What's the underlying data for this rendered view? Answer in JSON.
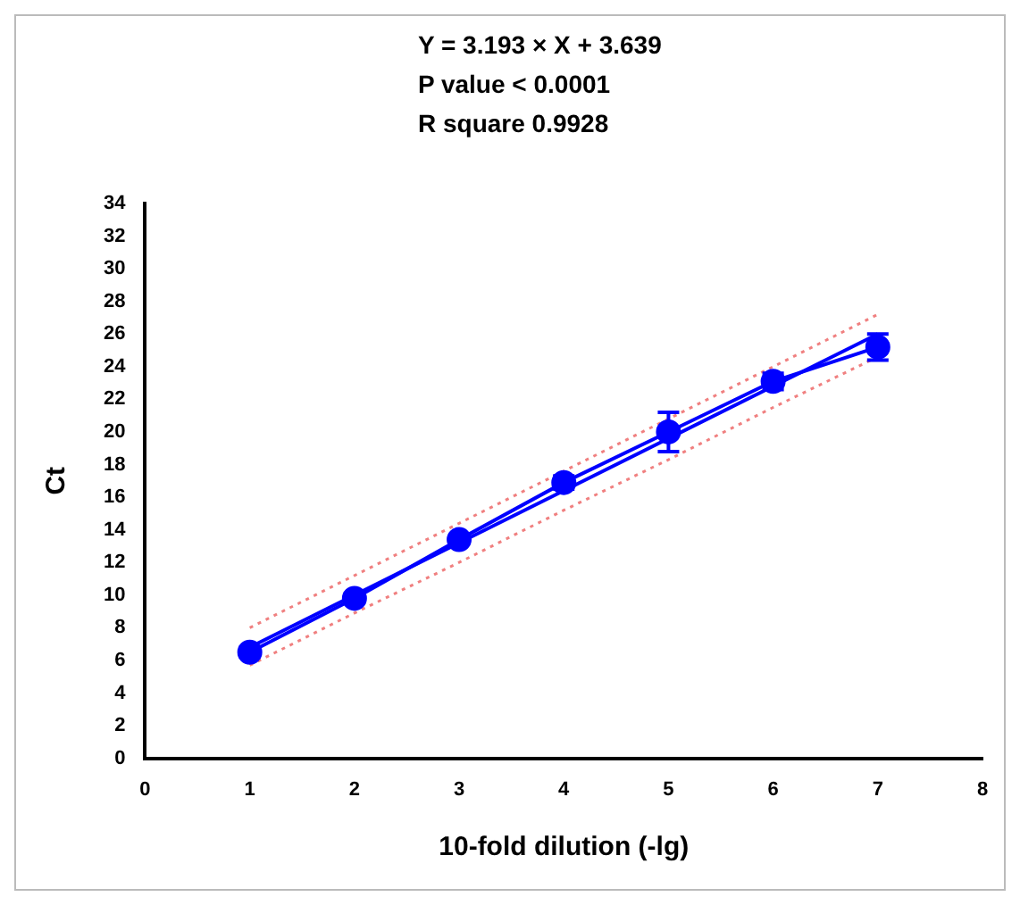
{
  "chart_data": {
    "type": "scatter",
    "xlabel": "10-fold dilution (-lg)",
    "ylabel": "Ct",
    "annotations": [
      "Y = 3.193 × X + 3.639",
      "P value < 0.0001",
      "R square 0.9928"
    ],
    "x": [
      1,
      2,
      3,
      4,
      5,
      6,
      7
    ],
    "series": [
      {
        "type": "line",
        "color": "#0000ff",
        "values": [
          6.5,
          9.8,
          13.4,
          16.9,
          20.0,
          23.1,
          25.2
        ],
        "errors": [
          0.3,
          0.3,
          0.3,
          0.4,
          1.2,
          0.5,
          0.8
        ],
        "marker": "circle",
        "line_style": "solid"
      },
      {
        "type": "line",
        "color": "#0000ff",
        "values": [
          6.8,
          10.0,
          13.2,
          16.4,
          19.6,
          22.8,
          26.0
        ],
        "marker": "none",
        "line_style": "solid"
      },
      {
        "type": "line",
        "color": "#f08080",
        "values": [
          8.0,
          11.2,
          14.4,
          17.6,
          20.8,
          24.0,
          27.2
        ],
        "marker": "none",
        "line_style": "dotted"
      },
      {
        "type": "line",
        "color": "#f08080",
        "values": [
          5.7,
          8.9,
          12.0,
          15.2,
          18.3,
          21.5,
          24.6
        ],
        "marker": "none",
        "line_style": "dotted"
      }
    ],
    "xlim": [
      0,
      8
    ],
    "xticks": [
      0,
      1,
      2,
      3,
      4,
      5,
      6,
      7,
      8
    ],
    "ylim": [
      0,
      34
    ],
    "yticks": [
      0,
      2,
      4,
      6,
      8,
      10,
      12,
      14,
      16,
      18,
      20,
      22,
      24,
      26,
      28,
      30,
      32,
      34
    ],
    "grid": false,
    "legend": false
  }
}
